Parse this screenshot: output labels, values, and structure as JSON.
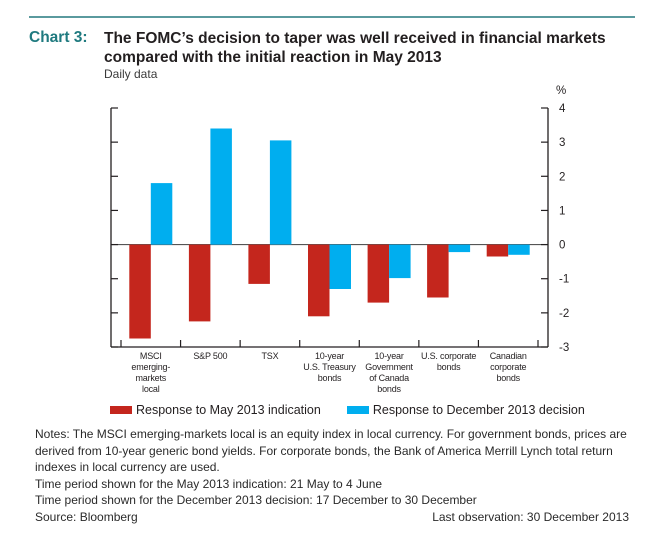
{
  "header": {
    "chart_number": "Chart 3:",
    "title": "The FOMC’s decision to taper was well received in financial markets compared with the initial reaction in May 2013",
    "subtitle": "Daily data"
  },
  "colors": {
    "accent_rule": "#5a9a9e",
    "chart_number": "#1f7a7f",
    "may_series": "#c4261d",
    "dec_series": "#00aeef"
  },
  "chart_data": {
    "type": "bar",
    "title": "The FOMC’s decision to taper was well received in financial markets compared with the initial reaction in May 2013",
    "subtitle": "Daily data",
    "xlabel": "",
    "ylabel": "%",
    "ylim": [
      -3,
      4
    ],
    "yticks": [
      4,
      3,
      2,
      1,
      0,
      -1,
      -2,
      -3
    ],
    "grid": false,
    "legend_position": "bottom",
    "categories": [
      "MSCI emerging-markets local",
      "S&P 500",
      "TSX",
      "10-year U.S. Treasury bonds",
      "10-year Government of Canada bonds",
      "U.S. corporate bonds",
      "Canadian corporate bonds"
    ],
    "category_label_lines": [
      [
        "MSCI",
        "emerging-",
        "markets",
        "local"
      ],
      [
        "S&P 500"
      ],
      [
        "TSX"
      ],
      [
        "10-year",
        "U.S. Treasury",
        "bonds"
      ],
      [
        "10-year",
        "Government",
        "of Canada",
        "bonds"
      ],
      [
        "U.S. corporate",
        "bonds"
      ],
      [
        "Canadian",
        "corporate bonds"
      ]
    ],
    "series": [
      {
        "name": "Response to May 2013 indication",
        "color": "#c4261d",
        "values": [
          -2.75,
          -2.25,
          -1.15,
          -2.1,
          -1.7,
          -1.55,
          -0.35
        ]
      },
      {
        "name": "Response to December 2013 decision",
        "color": "#00aeef",
        "values": [
          1.8,
          3.4,
          3.05,
          -1.3,
          -0.98,
          -0.22,
          -0.3
        ]
      }
    ]
  },
  "legend": [
    {
      "label": "Response to May 2013 indication",
      "color": "#c4261d"
    },
    {
      "label": "Response to December 2013 decision",
      "color": "#00aeef"
    }
  ],
  "notes": {
    "text": "Notes: The MSCI emerging-markets local is an equity index in local currency. For government bonds, prices are derived from 10-year generic bond yields. For corporate bonds, the Bank of America Merrill Lynch total return indexes in local currency are used.",
    "period_may": "Time period shown for the May 2013 indication: 21 May to 4 June",
    "period_dec": "Time period shown for the December 2013 decision: 17 December to 30 December"
  },
  "footer": {
    "source": "Source: Bloomberg",
    "last_observation": "Last observation: 30 December 2013"
  }
}
